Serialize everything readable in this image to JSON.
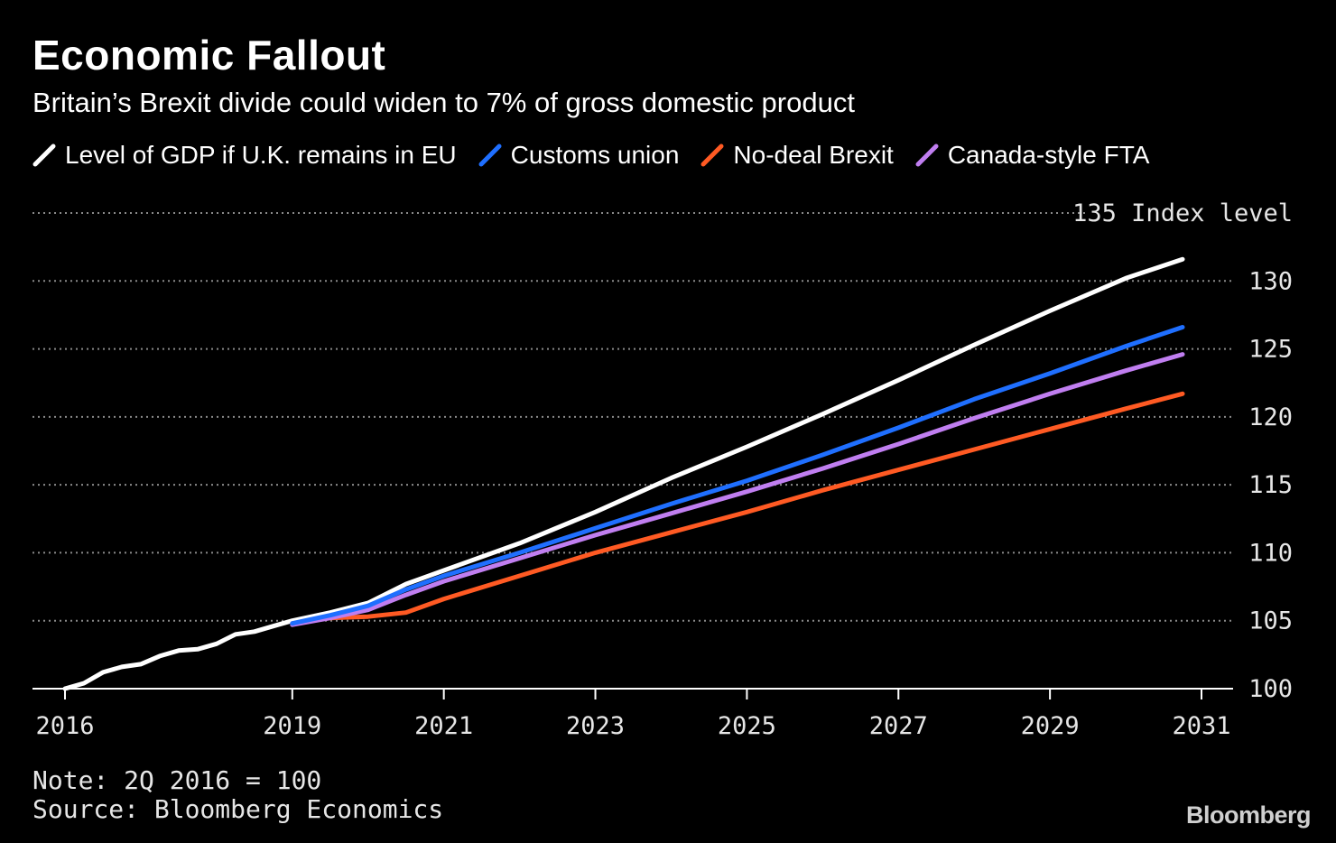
{
  "header": {
    "title": "Economic Fallout",
    "subtitle": "Britain’s Brexit divide could widen to 7% of gross domestic product"
  },
  "footer": {
    "note": "Note: 2Q 2016 = 100",
    "source": "Source: Bloomberg Economics",
    "logo": "Bloomberg"
  },
  "colors": {
    "background": "#000000",
    "grid": "#8a8a8a",
    "axis": "#ffffff"
  },
  "chart_data": {
    "type": "line",
    "title": "Economic Fallout",
    "subtitle": "Britain’s Brexit divide could widen to 7% of gross domestic product",
    "ylabel": "Index level",
    "ylim": [
      100,
      135
    ],
    "xlim": [
      2016,
      2031
    ],
    "x_ticks": [
      "2016",
      "2019",
      "2021",
      "2023",
      "2025",
      "2027",
      "2029",
      "2031"
    ],
    "y_ticks": [
      "100",
      "105",
      "110",
      "115",
      "120",
      "125",
      "130",
      "135"
    ],
    "top_tick_label": "135 Index level",
    "grid": true,
    "legend_position": "top",
    "series": [
      {
        "name": "Level of GDP if U.K. remains in EU",
        "color": "#ffffff",
        "x": [
          2016.0,
          2016.25,
          2016.5,
          2016.75,
          2017.0,
          2017.25,
          2017.5,
          2017.75,
          2018.0,
          2018.25,
          2018.5,
          2018.75,
          2019.0,
          2019.5,
          2020.0,
          2020.5,
          2021.0,
          2022.0,
          2023.0,
          2024.0,
          2025.0,
          2026.0,
          2027.0,
          2028.0,
          2029.0,
          2030.0,
          2030.75
        ],
        "y": [
          100.0,
          100.4,
          101.2,
          101.6,
          101.8,
          102.4,
          102.8,
          102.9,
          103.3,
          104.0,
          104.2,
          104.6,
          105.0,
          105.6,
          106.3,
          107.7,
          108.7,
          110.7,
          113.0,
          115.5,
          117.8,
          120.2,
          122.7,
          125.3,
          127.8,
          130.2,
          131.6
        ]
      },
      {
        "name": "Customs union",
        "color": "#1f6fff",
        "x": [
          2019.0,
          2019.5,
          2020.0,
          2020.5,
          2021.0,
          2022.0,
          2023.0,
          2024.0,
          2025.0,
          2026.0,
          2027.0,
          2028.0,
          2029.0,
          2030.0,
          2030.75
        ],
        "y": [
          104.8,
          105.4,
          106.1,
          107.3,
          108.3,
          110.0,
          111.8,
          113.6,
          115.3,
          117.2,
          119.2,
          121.3,
          123.2,
          125.2,
          126.6
        ]
      },
      {
        "name": "No-deal Brexit",
        "color": "#ff5a23",
        "x": [
          2019.0,
          2019.5,
          2020.0,
          2020.5,
          2021.0,
          2022.0,
          2023.0,
          2024.0,
          2025.0,
          2026.0,
          2027.0,
          2028.0,
          2029.0,
          2030.0,
          2030.75
        ],
        "y": [
          104.8,
          105.2,
          105.3,
          105.6,
          106.6,
          108.3,
          110.0,
          111.5,
          113.0,
          114.6,
          116.1,
          117.6,
          119.1,
          120.6,
          121.7
        ]
      },
      {
        "name": "Canada-style FTA",
        "color": "#c07ef0",
        "x": [
          2019.0,
          2019.5,
          2020.0,
          2020.5,
          2021.0,
          2022.0,
          2023.0,
          2024.0,
          2025.0,
          2026.0,
          2027.0,
          2028.0,
          2029.0,
          2030.0,
          2030.75
        ],
        "y": [
          104.7,
          105.2,
          105.8,
          106.9,
          107.9,
          109.6,
          111.3,
          112.9,
          114.5,
          116.2,
          118.0,
          119.9,
          121.7,
          123.4,
          124.6
        ]
      }
    ]
  }
}
